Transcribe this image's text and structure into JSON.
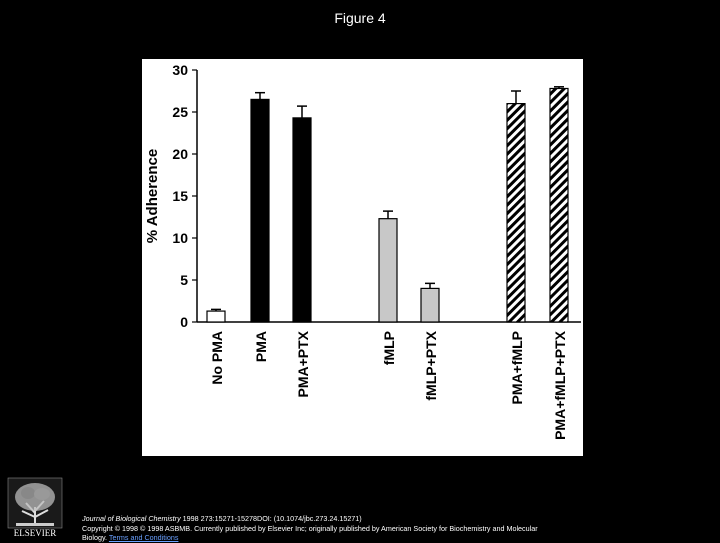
{
  "page_title": "Figure 4",
  "chart_data": {
    "type": "bar",
    "ylabel": "% Adherence",
    "ylim": [
      0,
      30
    ],
    "yticks": [
      0,
      5,
      10,
      15,
      20,
      25,
      30
    ],
    "grid": false,
    "categories": [
      "No PMA",
      "PMA",
      "PMA+PTX",
      "fMLP",
      "fMLP+PTX",
      "PMA+fMLP",
      "PMA+fMLP+PTX"
    ],
    "values": [
      1.3,
      26.5,
      24.3,
      12.3,
      4.0,
      26.0,
      27.8
    ],
    "errors": [
      0.2,
      0.8,
      1.4,
      0.9,
      0.6,
      1.5,
      0.2
    ],
    "fills": [
      "white",
      "black",
      "black",
      "gray",
      "gray",
      "hatched",
      "hatched"
    ],
    "colors": {
      "black": "#000000",
      "gray": "#c8c8c8",
      "white": "#ffffff"
    }
  },
  "citation": {
    "journal": "Journal of Biological Chemistry",
    "details": " 1998 273:15271-15278DOI: (10.1074/jbc.273.24.15271)",
    "copyright": "Copyright © 1998 © 1998 ASBMB. Currently published by Elsevier Inc; originally published by American Society for Biochemistry and Molecular Biology.",
    "link_text": "Terms and Conditions"
  },
  "logo": {
    "icon": "elsevier-tree-icon",
    "text": "ELSEVIER"
  }
}
